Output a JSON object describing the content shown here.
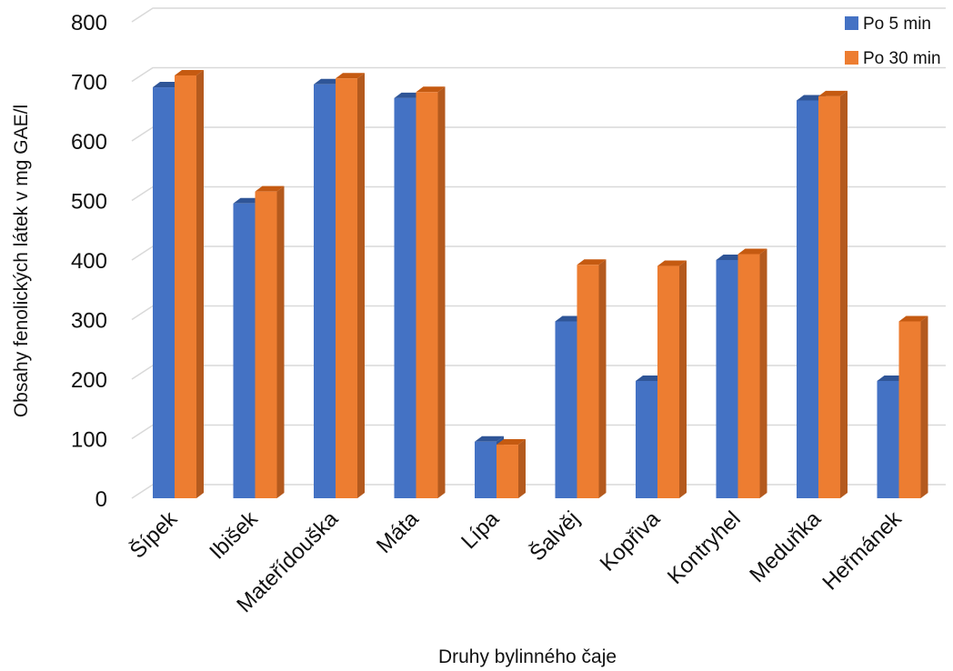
{
  "chart_data": {
    "type": "bar",
    "title": "",
    "xlabel": "Druhy bylinného čaje",
    "ylabel": "Obsahy fenolických látek v mg GAE/l",
    "categories": [
      "Šípek",
      "Ibišek",
      "Mateřídouška",
      "Máta",
      "Lípa",
      "Šalvěj",
      "Kopřiva",
      "Kontryhel",
      "Meduňka",
      "Heřmánek"
    ],
    "series": [
      {
        "name": "Po 5 min",
        "values": [
          690,
          495,
          695,
          672,
          95,
          297,
          197,
          400,
          668,
          197
        ]
      },
      {
        "name": "Po 30 min",
        "values": [
          710,
          515,
          705,
          682,
          90,
          392,
          390,
          410,
          675,
          297
        ]
      }
    ],
    "ylim": [
      0,
      800
    ],
    "yticks": [
      0,
      100,
      200,
      300,
      400,
      500,
      600,
      700,
      800
    ],
    "grid": true,
    "legend_position": "top-right",
    "colors": {
      "series": [
        "#4472C4",
        "#ED7D31"
      ],
      "series_side": [
        "#2E5597",
        "#B45A1E"
      ],
      "series_top": [
        "#2F5597",
        "#C55A11"
      ],
      "grid": "#D9D9D9",
      "text": "#111111"
    }
  }
}
